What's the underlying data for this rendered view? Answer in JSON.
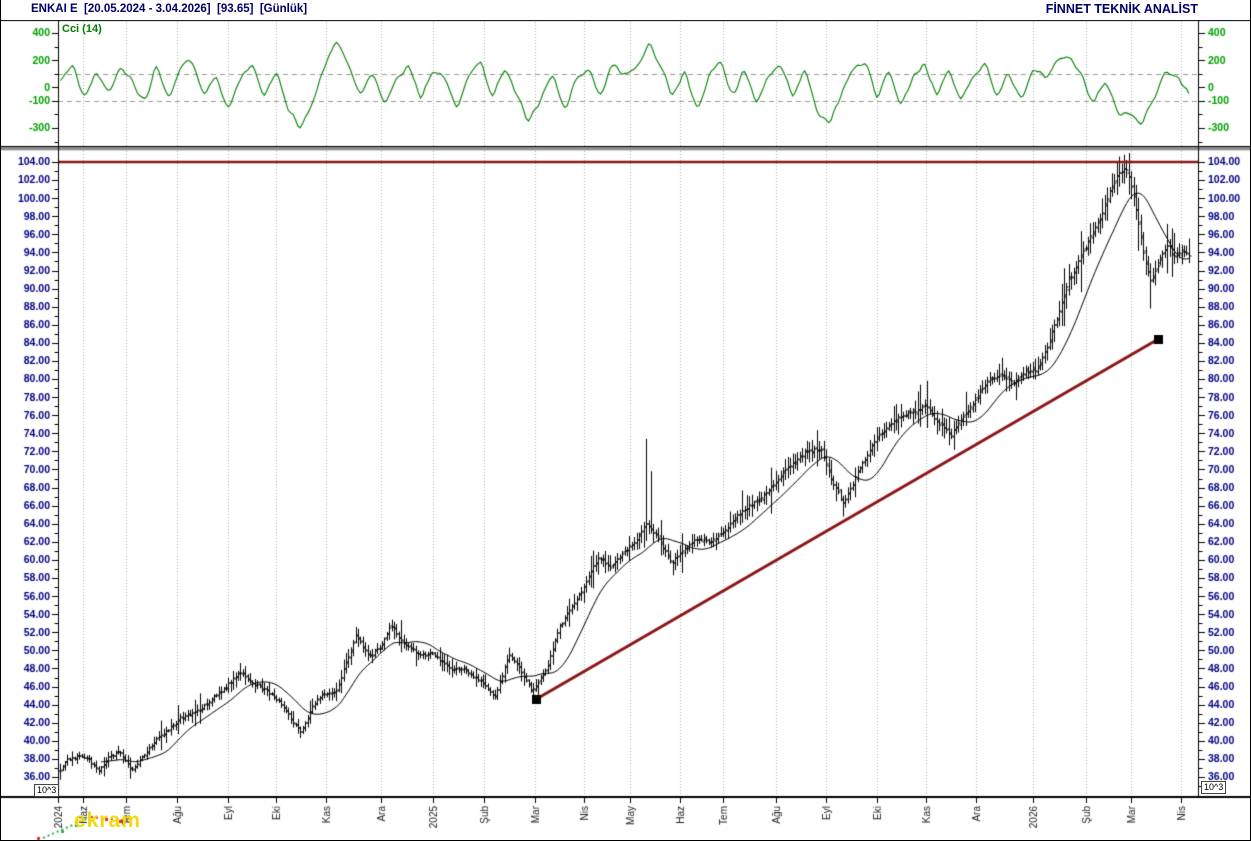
{
  "header": {
    "title": "ENKAI E  [20.05.2024 - 3.04.2026]  [93.65]  [Günlük]",
    "brand": "FİNNET TEKNİK ANALİST"
  },
  "watermark": {
    "text": "ekram"
  },
  "volume_scale_label": "10^3",
  "colors": {
    "title": "#000066",
    "axis_price": "#000080",
    "axis_cci": "#00A000",
    "cci_line": "#008000",
    "bar": "#000000",
    "ma_line": "#000000",
    "trend": "#8B1717",
    "grid": "#b2b2b2",
    "ref_dash": "#9a9a9a",
    "separator": "#8f8f8f",
    "month_label": "#222222",
    "spark_green": "#3CB054",
    "spark_red": "#E03030"
  },
  "x_axis": {
    "months": [
      {
        "label": "2024",
        "f": 0.0
      },
      {
        "label": "Haz",
        "f": 0.022
      },
      {
        "label": "Tem",
        "f": 0.06
      },
      {
        "label": "Ağu",
        "f": 0.104
      },
      {
        "label": "Eyl",
        "f": 0.149
      },
      {
        "label": "Eki",
        "f": 0.191
      },
      {
        "label": "Kas",
        "f": 0.235
      },
      {
        "label": "Ara",
        "f": 0.283
      },
      {
        "label": "2025",
        "f": 0.329
      },
      {
        "label": "Şub",
        "f": 0.374
      },
      {
        "label": "Mar",
        "f": 0.418
      },
      {
        "label": "Nis",
        "f": 0.461
      },
      {
        "label": "May",
        "f": 0.502
      },
      {
        "label": "Haz",
        "f": 0.546
      },
      {
        "label": "Tem",
        "f": 0.583
      },
      {
        "label": "Ağu",
        "f": 0.63
      },
      {
        "label": "Eyl",
        "f": 0.674
      },
      {
        "label": "Eki",
        "f": 0.718
      },
      {
        "label": "Kas",
        "f": 0.761
      },
      {
        "label": "Ara",
        "f": 0.805
      },
      {
        "label": "2026",
        "f": 0.855
      },
      {
        "label": "Şub",
        "f": 0.902
      },
      {
        "label": "Mar",
        "f": 0.941
      },
      {
        "label": "Nis",
        "f": 0.985
      }
    ]
  },
  "chart_data": [
    {
      "id": "cci",
      "type": "line",
      "panel": "top",
      "title": "Cci (14)",
      "ylim": [
        -432,
        488
      ],
      "yticks_labeled": [
        400,
        200,
        0,
        -100,
        -300
      ],
      "ytick_step": 100,
      "reference_lines": [
        100,
        -100
      ],
      "x_range": [
        0.002,
        0.992
      ],
      "noise": 65,
      "seed": 11,
      "anchors": [
        40,
        170,
        -90,
        120,
        -60,
        150,
        60,
        -120,
        180,
        -70,
        130,
        210,
        -50,
        90,
        -160,
        70,
        150,
        -80,
        120,
        -180,
        -300,
        -120,
        150,
        350,
        180,
        -60,
        120,
        -140,
        60,
        170,
        -90,
        130,
        60,
        -160,
        90,
        200,
        -70,
        140,
        -60,
        -250,
        -100,
        120,
        -170,
        60,
        150,
        -80,
        180,
        90,
        140,
        330,
        150,
        -90,
        120,
        -160,
        70,
        190,
        -60,
        130,
        -120,
        80,
        160,
        -80,
        140,
        -180,
        -290,
        -60,
        130,
        200,
        -90,
        110,
        -150,
        80,
        170,
        -70,
        140,
        -120,
        90,
        180,
        -60,
        120,
        -90,
        150,
        60,
        200,
        230,
        120,
        -130,
        70,
        -190,
        -200,
        -280,
        -110,
        120,
        80,
        -50
      ]
    },
    {
      "id": "price",
      "type": "ohlc",
      "panel": "main",
      "ylim": [
        33.8,
        105.2
      ],
      "ytick_labels": [
        104,
        102,
        100,
        98,
        96,
        94,
        92,
        90,
        88,
        86,
        84,
        82,
        80,
        78,
        76,
        74,
        72,
        70,
        68,
        66,
        64,
        62,
        60,
        58,
        56,
        54,
        52,
        50,
        48,
        46,
        44,
        42,
        40,
        38,
        36
      ],
      "ytick_minor_step": 1,
      "bars": 471,
      "x_range": [
        0.002,
        0.992
      ],
      "ma_period": 18,
      "last_close": 93.65,
      "seed": 7,
      "close_anchors": [
        [
          0.0,
          36.3
        ],
        [
          0.0079,
          37.8
        ],
        [
          0.0184,
          38.3
        ],
        [
          0.0272,
          37.9
        ],
        [
          0.0351,
          36.6
        ],
        [
          0.0447,
          38.2
        ],
        [
          0.0535,
          38.8
        ],
        [
          0.064,
          36.8
        ],
        [
          0.0728,
          38.0
        ],
        [
          0.0833,
          39.8
        ],
        [
          0.0947,
          41.0
        ],
        [
          0.1079,
          42.6
        ],
        [
          0.1254,
          43.5
        ],
        [
          0.1386,
          45.0
        ],
        [
          0.1491,
          46.2
        ],
        [
          0.1605,
          47.6
        ],
        [
          0.1711,
          46.3
        ],
        [
          0.1825,
          45.6
        ],
        [
          0.1956,
          44.2
        ],
        [
          0.2061,
          42.0
        ],
        [
          0.2132,
          41.0
        ],
        [
          0.2237,
          44.0
        ],
        [
          0.2325,
          45.2
        ],
        [
          0.2439,
          45.4
        ],
        [
          0.2526,
          48.5
        ],
        [
          0.2614,
          51.8
        ],
        [
          0.2728,
          49.2
        ],
        [
          0.2833,
          50.5
        ],
        [
          0.2921,
          52.8
        ],
        [
          0.3026,
          50.8
        ],
        [
          0.3167,
          49.5
        ],
        [
          0.3289,
          49.6
        ],
        [
          0.343,
          48.0
        ],
        [
          0.3553,
          47.9
        ],
        [
          0.3693,
          46.8
        ],
        [
          0.3833,
          44.9
        ],
        [
          0.3956,
          49.6
        ],
        [
          0.4044,
          48.2
        ],
        [
          0.4158,
          45.3
        ],
        [
          0.4281,
          47.8
        ],
        [
          0.4395,
          52.5
        ],
        [
          0.4518,
          55.0
        ],
        [
          0.4623,
          57.2
        ],
        [
          0.4737,
          60.3
        ],
        [
          0.4851,
          59.2
        ],
        [
          0.4956,
          60.8
        ],
        [
          0.5061,
          62.0
        ],
        [
          0.5158,
          64.0
        ],
        [
          0.5263,
          62.5
        ],
        [
          0.5377,
          59.6
        ],
        [
          0.5482,
          61.0
        ],
        [
          0.5605,
          62.3
        ],
        [
          0.5728,
          62.0
        ],
        [
          0.5851,
          63.2
        ],
        [
          0.5991,
          65.3
        ],
        [
          0.6132,
          66.5
        ],
        [
          0.6272,
          68.2
        ],
        [
          0.6412,
          70.3
        ],
        [
          0.6561,
          72.0
        ],
        [
          0.6693,
          72.2
        ],
        [
          0.6798,
          68.5
        ],
        [
          0.6895,
          66.2
        ],
        [
          0.7009,
          69.5
        ],
        [
          0.7132,
          72.5
        ],
        [
          0.7254,
          74.5
        ],
        [
          0.7377,
          75.8
        ],
        [
          0.75,
          76.3
        ],
        [
          0.7614,
          77.0
        ],
        [
          0.7728,
          75.0
        ],
        [
          0.7833,
          73.8
        ],
        [
          0.7947,
          76.0
        ],
        [
          0.8061,
          78.0
        ],
        [
          0.8167,
          80.0
        ],
        [
          0.8272,
          80.5
        ],
        [
          0.8377,
          79.5
        ],
        [
          0.8482,
          80.8
        ],
        [
          0.8588,
          81.0
        ],
        [
          0.8693,
          84.0
        ],
        [
          0.8781,
          87.5
        ],
        [
          0.8868,
          91.0
        ],
        [
          0.8956,
          93.0
        ],
        [
          0.9044,
          95.5
        ],
        [
          0.9132,
          97.5
        ],
        [
          0.9219,
          100.5
        ],
        [
          0.9307,
          102.8
        ],
        [
          0.9377,
          103.2
        ],
        [
          0.9447,
          99.5
        ],
        [
          0.9518,
          94.0
        ],
        [
          0.9588,
          90.5
        ],
        [
          0.9658,
          93.0
        ],
        [
          0.9728,
          94.8
        ],
        [
          0.9798,
          93.5
        ],
        [
          0.9868,
          94.2
        ],
        [
          0.9921,
          93.65
        ]
      ],
      "forced_highs": [
        [
          0.1605,
          48.6
        ],
        [
          0.2614,
          52.6
        ],
        [
          0.2921,
          53.4
        ],
        [
          0.3956,
          50.3
        ],
        [
          0.516,
          73.4
        ],
        [
          0.52,
          69.8
        ],
        [
          0.9307,
          104.6
        ],
        [
          0.9351,
          104.8
        ],
        [
          0.9395,
          104.3
        ]
      ],
      "forced_lows": [
        [
          0.002,
          35.7
        ],
        [
          0.064,
          35.8
        ],
        [
          0.2132,
          40.3
        ],
        [
          0.4175,
          44.3
        ],
        [
          0.5395,
          58.3
        ],
        [
          0.6895,
          64.8
        ],
        [
          0.9588,
          87.8
        ]
      ],
      "overlays": {
        "hline": {
          "price": 104.0
        },
        "trendline": {
          "from": {
            "f": 0.4193,
            "price": 44.6
          },
          "to": {
            "f": 0.9649,
            "price": 84.4
          },
          "markers": true
        }
      }
    }
  ]
}
